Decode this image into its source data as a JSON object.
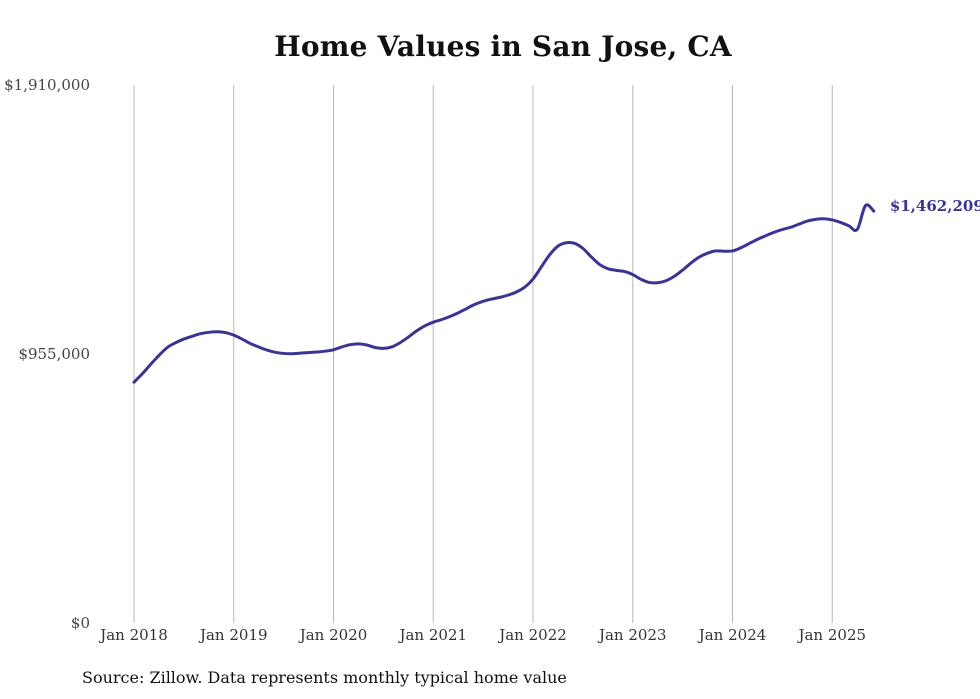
{
  "chart_data": {
    "type": "line",
    "title": "Home Values in San Jose, CA",
    "source": "Source: Zillow. Data represents monthly typical home value",
    "xlabel": "",
    "ylabel": "",
    "ylim": [
      0,
      1910000
    ],
    "y_ticks": [
      0,
      955000,
      1910000
    ],
    "y_tick_labels": [
      "$0",
      "$955,000",
      "$1,910,000"
    ],
    "x_ticks": [
      "2018-01",
      "2019-01",
      "2020-01",
      "2021-01",
      "2022-01",
      "2023-01",
      "2024-01",
      "2025-01"
    ],
    "x_tick_labels": [
      "Jan 2018",
      "Jan 2019",
      "Jan 2020",
      "Jan 2021",
      "Jan 2022",
      "Jan 2023",
      "Jan 2024",
      "Jan 2025"
    ],
    "grid": "vertical",
    "line_color": "#3b3493",
    "end_label": "$1,462,209",
    "series": [
      {
        "x": [
          "2018-01",
          "2018-02",
          "2018-03",
          "2018-04",
          "2018-05",
          "2018-06",
          "2018-07",
          "2018-08",
          "2018-09",
          "2018-10",
          "2018-11",
          "2018-12",
          "2019-01",
          "2019-02",
          "2019-03",
          "2019-04",
          "2019-05",
          "2019-06",
          "2019-07",
          "2019-08",
          "2019-09",
          "2019-10",
          "2019-11",
          "2019-12",
          "2020-01",
          "2020-02",
          "2020-03",
          "2020-04",
          "2020-05",
          "2020-06",
          "2020-07",
          "2020-08",
          "2020-09",
          "2020-10",
          "2020-11",
          "2020-12",
          "2021-01",
          "2021-02",
          "2021-03",
          "2021-04",
          "2021-05",
          "2021-06",
          "2021-07",
          "2021-08",
          "2021-09",
          "2021-10",
          "2021-11",
          "2021-12",
          "2022-01",
          "2022-02",
          "2022-03",
          "2022-04",
          "2022-05",
          "2022-06",
          "2022-07",
          "2022-08",
          "2022-09",
          "2022-10",
          "2022-11",
          "2022-12",
          "2023-01",
          "2023-02",
          "2023-03",
          "2023-04",
          "2023-05",
          "2023-06",
          "2023-07",
          "2023-08",
          "2023-09",
          "2023-10",
          "2023-11",
          "2023-12",
          "2024-01",
          "2024-02",
          "2024-03",
          "2024-04",
          "2024-05",
          "2024-06",
          "2024-07",
          "2024-08",
          "2024-09",
          "2024-10",
          "2024-11",
          "2024-12",
          "2025-01",
          "2025-02",
          "2025-03",
          "2025-04",
          "2025-05",
          "2025-06"
        ],
        "values": [
          855000,
          885000,
          918000,
          950000,
          978000,
          995000,
          1008000,
          1018000,
          1027000,
          1032000,
          1034000,
          1031000,
          1022000,
          1008000,
          992000,
          980000,
          969000,
          961000,
          957000,
          956000,
          958000,
          960000,
          962000,
          965000,
          970000,
          980000,
          988000,
          991000,
          987000,
          978000,
          975000,
          980000,
          995000,
          1015000,
          1037000,
          1055000,
          1068000,
          1077000,
          1088000,
          1101000,
          1116000,
          1131000,
          1142000,
          1150000,
          1156000,
          1164000,
          1175000,
          1192000,
          1221000,
          1264000,
          1307000,
          1338000,
          1350000,
          1348000,
          1330000,
          1300000,
          1273000,
          1258000,
          1252000,
          1248000,
          1237000,
          1220000,
          1209000,
          1208000,
          1215000,
          1231000,
          1253000,
          1278000,
          1299000,
          1313000,
          1321000,
          1320000,
          1321000,
          1332000,
          1347000,
          1362000,
          1375000,
          1387000,
          1397000,
          1405000,
          1416000,
          1427000,
          1433000,
          1435000,
          1431000,
          1422000,
          1410000,
          1397000,
          1482000,
          1462209
        ]
      }
    ]
  }
}
